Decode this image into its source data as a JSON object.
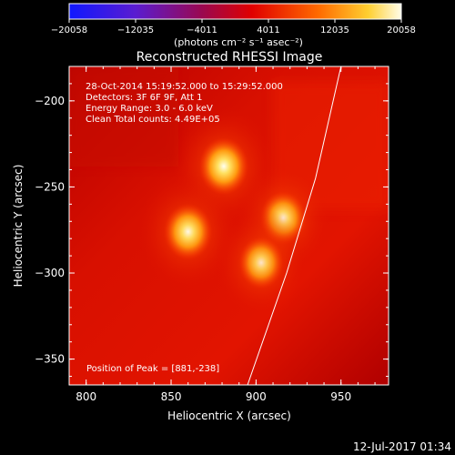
{
  "colorbar": {
    "ticks": [
      "−20058",
      "−12035",
      "−4011",
      "4011",
      "12035",
      "20058"
    ],
    "tick_values": [
      -20058,
      -12035,
      -4011,
      4011,
      12035,
      20058
    ],
    "units": "(photons cm⁻² s⁻¹ asec⁻²)"
  },
  "title": "Reconstructed RHESSI Image",
  "info": {
    "line1": "28-Oct-2014 15:19:52.000 to 15:29:52.000",
    "line2": "Detectors: 3F 6F 9F, Att 1",
    "line3": "Energy Range: 3.0 - 6.0 keV",
    "line4": "Clean    Total counts: 4.49E+05"
  },
  "peak_label": "Position of Peak = [881,-238]",
  "axes": {
    "xlabel": "Heliocentric X (arcsec)",
    "ylabel": "Heliocentric Y (arcsec)",
    "xticks": [
      "800",
      "850",
      "900",
      "950"
    ],
    "yticks": [
      "−200",
      "−250",
      "−300",
      "−350"
    ],
    "xlim": [
      790,
      978
    ],
    "ylim": [
      -365,
      -180
    ]
  },
  "timestamp": "12-Jul-2017 01:34",
  "chart_data": {
    "type": "heatmap",
    "title": "Reconstructed RHESSI Image",
    "xlabel": "Heliocentric X (arcsec)",
    "ylabel": "Heliocentric Y (arcsec)",
    "xlim": [
      790,
      978
    ],
    "ylim": [
      -365,
      -180
    ],
    "colorbar_range": [
      -20058,
      20058
    ],
    "peak": [
      881,
      -238
    ],
    "sources": [
      {
        "x": 881,
        "y": -238,
        "level": 1.0
      },
      {
        "x": 860,
        "y": -276,
        "level": 0.92
      },
      {
        "x": 916,
        "y": -268,
        "level": 0.78
      },
      {
        "x": 903,
        "y": -294,
        "level": 0.7
      }
    ],
    "limb_points": [
      [
        950,
        -180
      ],
      [
        935,
        -245
      ],
      [
        918,
        -300
      ],
      [
        895,
        -365
      ]
    ]
  }
}
